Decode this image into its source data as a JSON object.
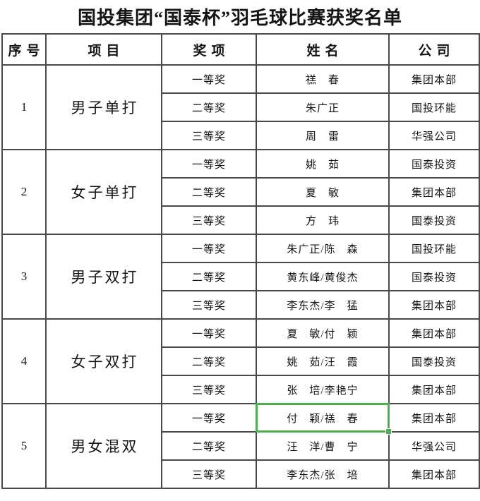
{
  "title": "国投集团“国泰杯”羽毛球比赛获奖名单",
  "table": {
    "headers": [
      "序号",
      "项目",
      "奖项",
      "姓名",
      "公司"
    ],
    "highlight_color": "#4caf50",
    "sections": [
      {
        "no": "1",
        "event": "男子单打",
        "rows": [
          {
            "award": "一等奖",
            "name": "禚　春",
            "company": "集团本部"
          },
          {
            "award": "二等奖",
            "name": "朱广正",
            "company": "国投环能"
          },
          {
            "award": "三等奖",
            "name": "周　雷",
            "company": "华强公司"
          }
        ]
      },
      {
        "no": "2",
        "event": "女子单打",
        "rows": [
          {
            "award": "一等奖",
            "name": "姚　茹",
            "company": "国泰投资"
          },
          {
            "award": "二等奖",
            "name": "夏　敏",
            "company": "集团本部"
          },
          {
            "award": "三等奖",
            "name": "方　玮",
            "company": "国泰投资"
          }
        ]
      },
      {
        "no": "3",
        "event": "男子双打",
        "rows": [
          {
            "award": "一等奖",
            "name": "朱广正/陈　森",
            "company": "国投环能"
          },
          {
            "award": "二等奖",
            "name": "黄东峰/黄俊杰",
            "company": "国泰投资"
          },
          {
            "award": "三等奖",
            "name": "李东杰/李　猛",
            "company": "集团本部"
          }
        ]
      },
      {
        "no": "4",
        "event": "女子双打",
        "rows": [
          {
            "award": "一等奖",
            "name": "夏　敏/付　颖",
            "company": "集团本部"
          },
          {
            "award": "二等奖",
            "name": "姚　茹/汪　霞",
            "company": "国泰投资"
          },
          {
            "award": "三等奖",
            "name": "张　培/李艳宁",
            "company": "集团本部"
          }
        ]
      },
      {
        "no": "5",
        "event": "男女混双",
        "rows": [
          {
            "award": "一等奖",
            "name": "付　颖/禚　春",
            "company": "集团本部",
            "highlighted": true
          },
          {
            "award": "二等奖",
            "name": "汪　洋/曹　宁",
            "company": "华强公司"
          },
          {
            "award": "三等奖",
            "name": "李东杰/张　培",
            "company": "集团本部"
          }
        ]
      }
    ]
  }
}
